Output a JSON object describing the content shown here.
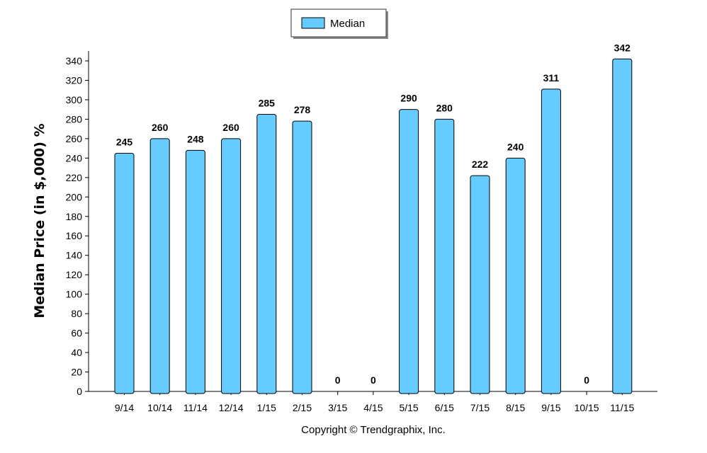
{
  "chart_data": {
    "type": "bar",
    "categories": [
      "9/14",
      "10/14",
      "11/14",
      "12/14",
      "1/15",
      "2/15",
      "3/15",
      "4/15",
      "5/15",
      "6/15",
      "7/15",
      "8/15",
      "9/15",
      "10/15",
      "11/15"
    ],
    "series": [
      {
        "name": "Median",
        "values": [
          245,
          260,
          248,
          260,
          285,
          278,
          0,
          0,
          290,
          280,
          222,
          240,
          311,
          0,
          342
        ]
      }
    ],
    "ylabel": "Median Price (in $,000) %",
    "xlabel": "",
    "ylim": [
      0,
      340
    ],
    "yticks": [
      0,
      20,
      40,
      60,
      80,
      100,
      120,
      140,
      160,
      180,
      200,
      220,
      240,
      260,
      280,
      300,
      320,
      340
    ],
    "legend_position": "top-center",
    "grid": false,
    "bar_color": "#66ccff",
    "bar_edge_color": "#000000"
  },
  "footer": {
    "copyright": "Copyright © Trendgraphix, Inc."
  }
}
